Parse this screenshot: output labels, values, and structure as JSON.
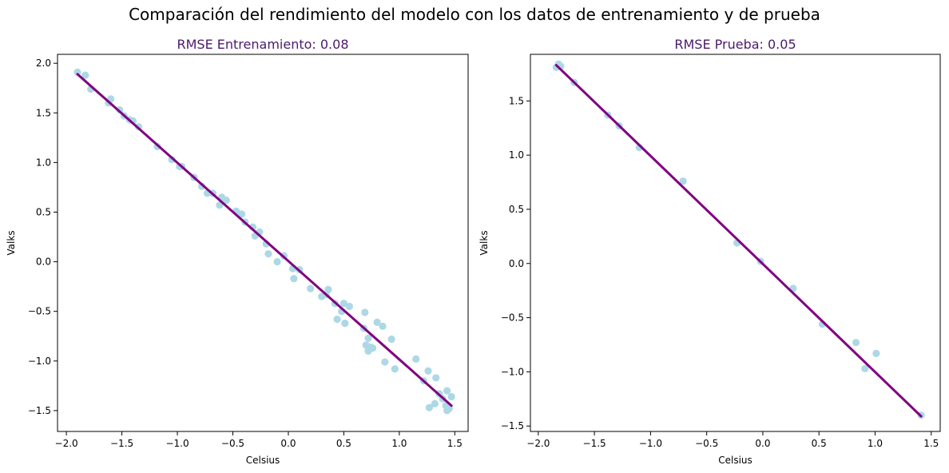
{
  "figure_title": "Comparación del rendimiento del modelo con los datos de entrenamiento y de prueba",
  "colors": {
    "points": "#add8e6",
    "line": "#800080",
    "title": "#4b1a6b"
  },
  "chart_data": [
    {
      "type": "scatter",
      "title": "RMSE Entrenamiento: 0.08",
      "xlabel": "Celsius",
      "ylabel": "Valks",
      "xlim": [
        -2.08,
        1.62
      ],
      "ylim": [
        -1.71,
        2.09
      ],
      "xticks": [
        -2.0,
        -1.5,
        -1.0,
        -0.5,
        0.0,
        0.5,
        1.0,
        1.5
      ],
      "xtick_labels": [
        "−2.0",
        "−1.5",
        "−1.0",
        "−0.5",
        "0.0",
        "0.5",
        "1.0",
        "1.5"
      ],
      "yticks": [
        -1.5,
        -1.0,
        -0.5,
        0.0,
        0.5,
        1.0,
        1.5,
        2.0
      ],
      "ytick_labels": [
        "−1.5",
        "−1.0",
        "−0.5",
        "0.0",
        "0.5",
        "1.0",
        "1.5",
        "2.0"
      ],
      "grid": false,
      "points": [
        [
          -1.9,
          1.91
        ],
        [
          -1.83,
          1.88
        ],
        [
          -1.78,
          1.74
        ],
        [
          -1.62,
          1.6
        ],
        [
          -1.6,
          1.64
        ],
        [
          -1.52,
          1.53
        ],
        [
          -1.48,
          1.47
        ],
        [
          -1.43,
          1.43
        ],
        [
          -1.4,
          1.42
        ],
        [
          -1.35,
          1.36
        ],
        [
          -1.18,
          1.16
        ],
        [
          -1.05,
          1.03
        ],
        [
          -0.98,
          0.96
        ],
        [
          -0.96,
          0.96
        ],
        [
          -0.85,
          0.85
        ],
        [
          -0.78,
          0.76
        ],
        [
          -0.73,
          0.69
        ],
        [
          -0.68,
          0.69
        ],
        [
          -0.62,
          0.57
        ],
        [
          -0.6,
          0.65
        ],
        [
          -0.56,
          0.62
        ],
        [
          -0.47,
          0.51
        ],
        [
          -0.42,
          0.48
        ],
        [
          -0.39,
          0.4
        ],
        [
          -0.32,
          0.35
        ],
        [
          -0.3,
          0.26
        ],
        [
          -0.26,
          0.3
        ],
        [
          -0.2,
          0.18
        ],
        [
          -0.18,
          0.08
        ],
        [
          -0.1,
          0.0
        ],
        [
          -0.04,
          0.06
        ],
        [
          0.04,
          -0.07
        ],
        [
          0.05,
          -0.17
        ],
        [
          0.1,
          -0.08
        ],
        [
          0.2,
          -0.27
        ],
        [
          0.3,
          -0.35
        ],
        [
          0.34,
          -0.33
        ],
        [
          0.36,
          -0.28
        ],
        [
          0.42,
          -0.42
        ],
        [
          0.44,
          -0.58
        ],
        [
          0.48,
          -0.5
        ],
        [
          0.5,
          -0.42
        ],
        [
          0.51,
          -0.62
        ],
        [
          0.55,
          -0.45
        ],
        [
          0.68,
          -0.67
        ],
        [
          0.69,
          -0.51
        ],
        [
          0.7,
          -0.84
        ],
        [
          0.72,
          -0.77
        ],
        [
          0.72,
          -0.9
        ],
        [
          0.74,
          -0.86
        ],
        [
          0.76,
          -0.87
        ],
        [
          0.8,
          -0.61
        ],
        [
          0.85,
          -0.65
        ],
        [
          0.87,
          -1.01
        ],
        [
          0.93,
          -0.78
        ],
        [
          0.96,
          -1.08
        ],
        [
          1.15,
          -0.98
        ],
        [
          1.22,
          -1.2
        ],
        [
          1.26,
          -1.1
        ],
        [
          1.27,
          -1.47
        ],
        [
          1.32,
          -1.43
        ],
        [
          1.33,
          -1.17
        ],
        [
          1.36,
          -1.33
        ],
        [
          1.39,
          -1.38
        ],
        [
          1.42,
          -1.45
        ],
        [
          1.43,
          -1.5
        ],
        [
          1.43,
          -1.3
        ],
        [
          1.45,
          -1.48
        ],
        [
          1.47,
          -1.36
        ]
      ],
      "fit_line": {
        "x": [
          -1.9,
          1.47
        ],
        "y": [
          1.89,
          -1.45
        ]
      }
    },
    {
      "type": "scatter",
      "title": "RMSE Prueba: 0.05",
      "xlabel": "Celsius",
      "ylabel": "Valks",
      "xlim": [
        -2.07,
        1.58
      ],
      "ylim": [
        -1.55,
        1.93
      ],
      "xticks": [
        -2.0,
        -1.5,
        -1.0,
        -0.5,
        0.0,
        0.5,
        1.0,
        1.5
      ],
      "xtick_labels": [
        "−2.0",
        "−1.5",
        "−1.0",
        "−0.5",
        "0.0",
        "0.5",
        "1.0",
        "1.5"
      ],
      "yticks": [
        -1.5,
        -1.0,
        -0.5,
        0.0,
        0.5,
        1.0,
        1.5
      ],
      "ytick_labels": [
        "−1.5",
        "−1.0",
        "−0.5",
        "0.0",
        "0.5",
        "1.0",
        "1.5"
      ],
      "grid": false,
      "points": [
        [
          -1.84,
          1.81
        ],
        [
          -1.82,
          1.84
        ],
        [
          -1.8,
          1.82
        ],
        [
          -1.68,
          1.67
        ],
        [
          -1.38,
          1.37
        ],
        [
          -1.28,
          1.27
        ],
        [
          -1.1,
          1.07
        ],
        [
          -0.71,
          0.76
        ],
        [
          -0.23,
          0.19
        ],
        [
          -0.02,
          0.02
        ],
        [
          0.27,
          -0.23
        ],
        [
          0.53,
          -0.56
        ],
        [
          0.83,
          -0.73
        ],
        [
          0.91,
          -0.97
        ],
        [
          1.01,
          -0.83
        ],
        [
          1.41,
          -1.4
        ]
      ],
      "fit_line": {
        "x": [
          -1.84,
          1.41
        ],
        "y": [
          1.83,
          -1.41
        ]
      }
    }
  ]
}
